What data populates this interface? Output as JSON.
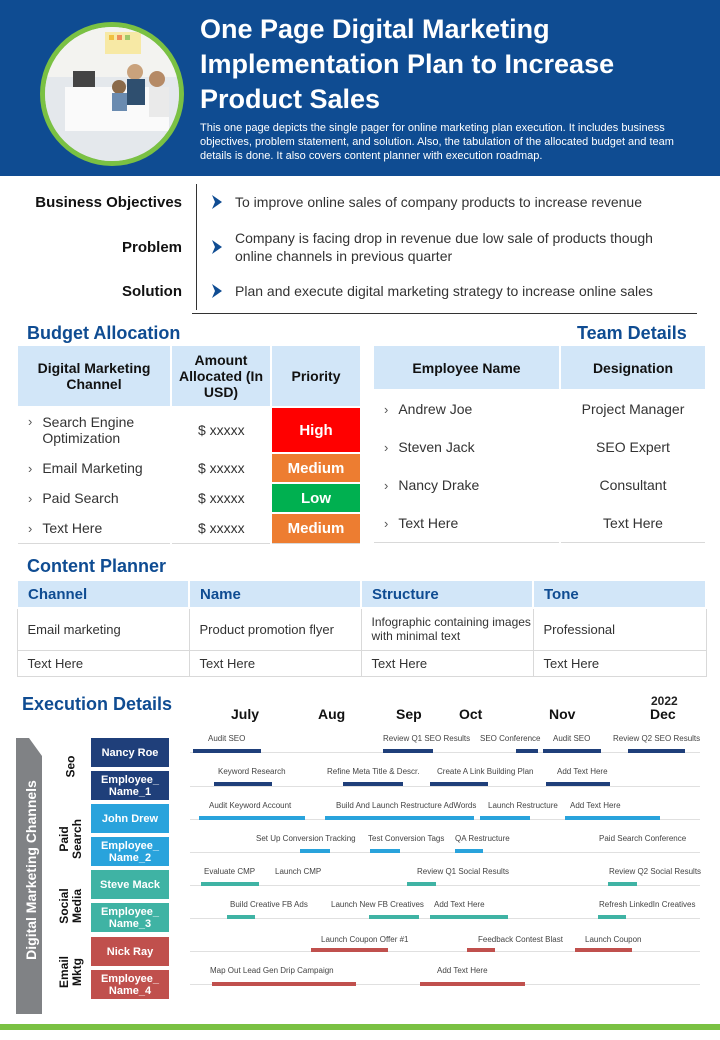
{
  "header": {
    "title": "One Page Digital Marketing Implementation Plan to Increase Product Sales",
    "subtitle": "This one page depicts the single pager for online marketing plan execution. It includes business objectives, problem statement, and solution. Also, the tabulation of the allocated budget and team details is done. It also covers content planner with execution roadmap."
  },
  "objectives": [
    {
      "label": "Business Objectives",
      "text": "To improve online sales of company products to increase revenue"
    },
    {
      "label": "Problem",
      "text": "Company is facing drop in revenue due low sale of products though online channels in previous quarter"
    },
    {
      "label": "Solution",
      "text": "Plan and execute digital marketing strategy to increase online sales"
    }
  ],
  "budget": {
    "title": "Budget Allocation",
    "headers": [
      "Digital Marketing Channel",
      "Amount Allocated (In USD)",
      "Priority"
    ],
    "rows": [
      {
        "channel": "Search Engine Optimization",
        "amount": "$ xxxxx",
        "priority": "High",
        "color": "#ff0000"
      },
      {
        "channel": "Email Marketing",
        "amount": "$ xxxxx",
        "priority": "Medium",
        "color": "#ed7d31"
      },
      {
        "channel": "Paid Search",
        "amount": "$ xxxxx",
        "priority": "Low",
        "color": "#00b050"
      },
      {
        "channel": "Text Here",
        "amount": "$ xxxxx",
        "priority": "Medium",
        "color": "#ed7d31"
      }
    ]
  },
  "team": {
    "title": "Team Details",
    "headers": [
      "Employee Name",
      "Designation"
    ],
    "rows": [
      {
        "name": "Andrew Joe",
        "designation": "Project Manager"
      },
      {
        "name": "Steven Jack",
        "designation": "SEO Expert"
      },
      {
        "name": "Nancy Drake",
        "designation": "Consultant"
      },
      {
        "name": "Text Here",
        "designation": "Text Here"
      }
    ]
  },
  "content": {
    "title": "Content Planner",
    "headers": [
      "Channel",
      "Name",
      "Structure",
      "Tone"
    ],
    "rows": [
      [
        "Email marketing",
        "Product promotion flyer",
        "Infographic containing images with minimal text",
        "Professional"
      ],
      [
        "Text Here",
        "Text Here",
        "Text Here",
        "Text Here"
      ]
    ]
  },
  "execution": {
    "title": "Execution Details",
    "side_label": "Digital Marketing Channels",
    "months": [
      "July",
      "Aug",
      "Sep",
      "Oct",
      "Nov",
      "Dec"
    ],
    "year": "2022",
    "groups": [
      {
        "name": "Seo",
        "color": "#1f3f7a"
      },
      {
        "name": "Paid Search",
        "color": "#29a3dc"
      },
      {
        "name": "Social Media",
        "color": "#3fb3a4"
      },
      {
        "name": "Email Mktg",
        "color": "#c0504d"
      }
    ],
    "employees": [
      "Nancy Roe",
      "Employee_ Name_1",
      "John Drew",
      "Employee_ Name_2",
      "Steve Mack",
      "Employee_ Name_3",
      "Nick Ray",
      "Employee_ Name_4"
    ],
    "tasks": [
      [
        "Audit SEO",
        "Review Q1 SEO Results",
        "SEO Conference",
        "Audit SEO",
        "Review Q2 SEO Results"
      ],
      [
        "Keyword Research",
        "Refine Meta Title & Descr.",
        "Create A Link Building Plan",
        "Add Text Here"
      ],
      [
        "Audit Keyword Account",
        "Build And Launch Restructure AdWords",
        "Launch Restructure",
        "Add Text Here"
      ],
      [
        "Set Up Conversion Tracking",
        "Test Conversion Tags",
        "QA Restructure",
        "Paid Search Conference"
      ],
      [
        "Evaluate CMP",
        "Launch CMP",
        "Review Q1 Social Results",
        "Review Q2 Social Results"
      ],
      [
        "Build Creative FB Ads",
        "Launch New FB Creatives",
        "Add Text Here",
        "Refresh LinkedIn Creatives"
      ],
      [
        "Launch Coupon Offer #1",
        "Feedback Contest Blast",
        "Launch Coupon"
      ],
      [
        "Map Out Lead Gen Drip Campaign",
        "Add Text Here"
      ]
    ]
  },
  "colors": {
    "brand": "#0f4c92",
    "accent": "#7ac143",
    "header_cell": "#d2e6f8"
  }
}
